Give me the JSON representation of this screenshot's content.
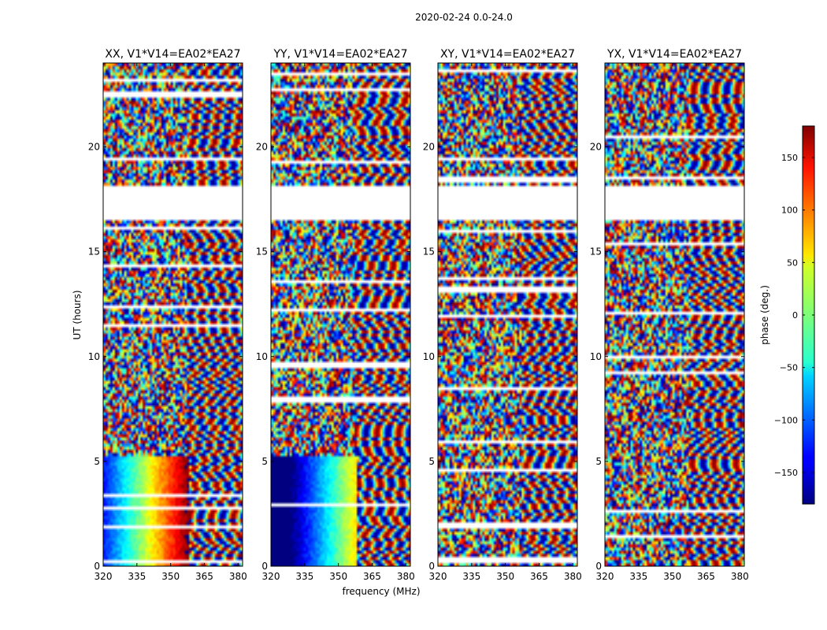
{
  "figure": {
    "suptitle": "2020-02-24 0.0-24.0"
  },
  "chart_data": {
    "type": "heatmap",
    "title": "2020-02-24 0.0-24.0",
    "xlabel": "frequency (MHz)",
    "ylabel": "UT (hours)",
    "xlim": [
      320,
      382
    ],
    "ylim": [
      0,
      24
    ],
    "xticks": [
      320,
      335,
      350,
      365,
      380
    ],
    "yticks": [
      0,
      5,
      10,
      15,
      20
    ],
    "panels": [
      {
        "title": "XX, V1*V14=EA02*EA27",
        "pattern": "parallel"
      },
      {
        "title": "YY, V1*V14=EA02*EA27",
        "pattern": "parallel"
      },
      {
        "title": "XY, V1*V14=EA02*EA27",
        "pattern": "cross"
      },
      {
        "title": "YX, V1*V14=EA02*EA27",
        "pattern": "cross"
      }
    ],
    "data_gaps_ut": [
      [
        18.1,
        16.5
      ]
    ],
    "colorbar": {
      "label": "phase (deg.)",
      "range": [
        -180,
        180
      ],
      "ticks": [
        150,
        100,
        50,
        0,
        -50,
        -100,
        -150
      ],
      "colormap": "jet"
    },
    "value_description": "visibility phase vs frequency and UT"
  }
}
